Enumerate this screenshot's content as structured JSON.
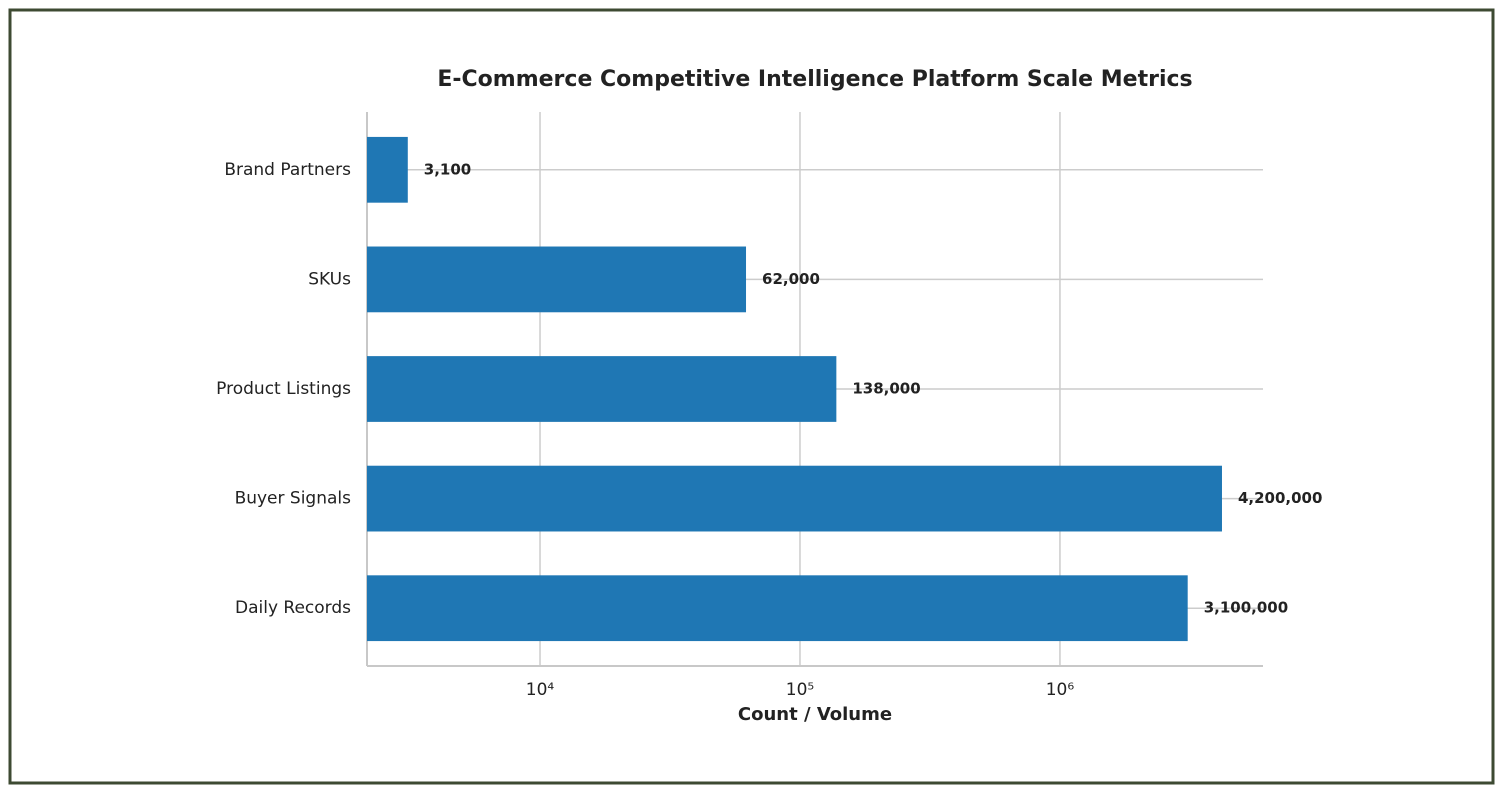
{
  "chart_data": {
    "type": "bar",
    "orientation": "horizontal",
    "title": "E-Commerce Competitive Intelligence Platform Scale Metrics",
    "x_label": "Count / Volume",
    "categories": [
      "Brand Partners",
      "SKUs",
      "Product Listings",
      "Buyer Signals",
      "Daily Records"
    ],
    "values": [
      3100,
      62000,
      138000,
      4200000,
      3100000
    ],
    "value_labels": [
      "3,100",
      "62,000",
      "138,000",
      "4,200,000",
      "3,100,000"
    ],
    "color": "#1f77b4",
    "xscale": "log",
    "xlim": [
      2160,
      6040000
    ],
    "xticks": [
      {
        "value": 10000,
        "label": "10⁴"
      },
      {
        "value": 100000,
        "label": "10⁵"
      },
      {
        "value": 1000000,
        "label": "10⁶"
      }
    ],
    "grid": true
  }
}
